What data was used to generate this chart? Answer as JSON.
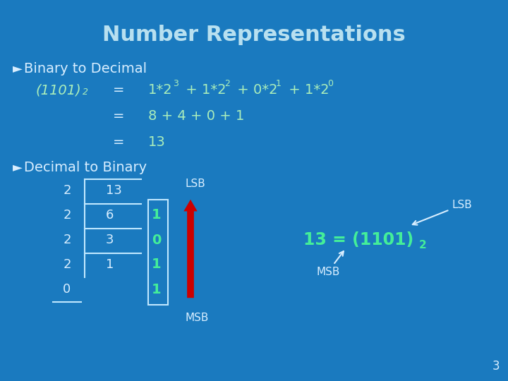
{
  "title": "Number Representations",
  "title_color": "#b8e0f0",
  "title_fontsize": 22,
  "bg_color": "#1a7abf",
  "text_color": "#aaeebb",
  "white_color": "#d8eeff",
  "green_color": "#44ee99",
  "bullet": "►",
  "line1_label": "Binary to Decimal",
  "line5_label": "Decimal to Binary",
  "page_num": "3",
  "arrow_color": "#cc0000"
}
